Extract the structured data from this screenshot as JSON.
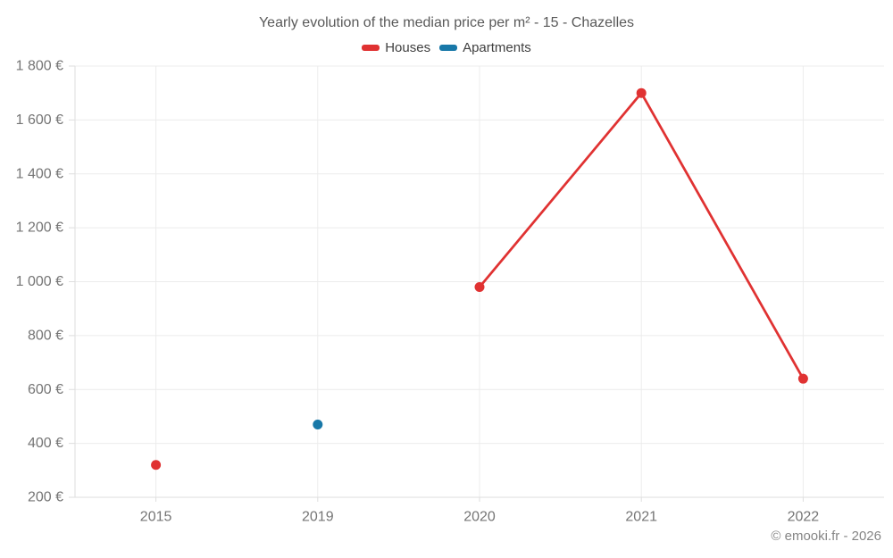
{
  "chart_data": {
    "type": "line",
    "title": "Yearly evolution of the median price per m² - 15 - Chazelles",
    "categories": [
      "2015",
      "2019",
      "2020",
      "2021",
      "2022"
    ],
    "series": [
      {
        "name": "Houses",
        "color": "#e03232",
        "values": [
          320,
          null,
          980,
          1700,
          640
        ]
      },
      {
        "name": "Apartments",
        "color": "#1878a8",
        "values": [
          null,
          470,
          null,
          null,
          null
        ]
      }
    ],
    "ylim": [
      200,
      1800
    ],
    "y_ticks": [
      {
        "value": 200,
        "label": "200 €"
      },
      {
        "value": 400,
        "label": "400 €"
      },
      {
        "value": 600,
        "label": "600 €"
      },
      {
        "value": 800,
        "label": "800 €"
      },
      {
        "value": 1000,
        "label": "1 000 €"
      },
      {
        "value": 1200,
        "label": "1 200 €"
      },
      {
        "value": 1400,
        "label": "1 400 €"
      },
      {
        "value": 1600,
        "label": "1 600 €"
      },
      {
        "value": 1800,
        "label": "1 800 €"
      }
    ],
    "xlabel": "",
    "ylabel": "",
    "grid": true,
    "legend_position": "top"
  },
  "colors": {
    "background": "#ffffff",
    "grid": "#ececec",
    "axis": "#dedede",
    "tick": "#dedede",
    "tick_label": "#757575",
    "title": "#595959",
    "legend_text": "#404040",
    "attribution": "#858585"
  },
  "footer": {
    "attribution": "© emooki.fr - 2026"
  }
}
